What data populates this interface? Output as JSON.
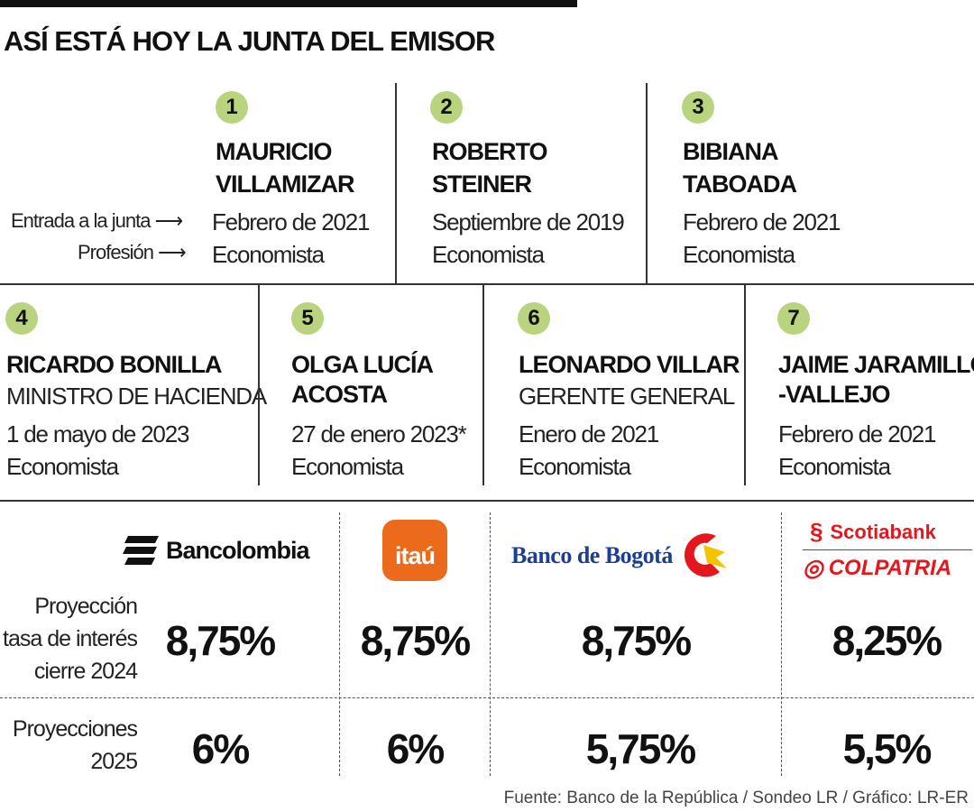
{
  "title": "ASÍ ESTÁ HOY LA JUNTA DEL EMISOR",
  "legend": {
    "entry": "Entrada a la junta",
    "profession": "Profesión"
  },
  "members": [
    {
      "n": "1",
      "name1": "MAURICIO",
      "name2": "VILLAMIZAR",
      "date": "Febrero de 2021",
      "prof": "Economista"
    },
    {
      "n": "2",
      "name1": "ROBERTO",
      "name2": "STEINER",
      "date": "Septiembre de 2019",
      "prof": "Economista"
    },
    {
      "n": "3",
      "name1": "BIBIANA",
      "name2": "TABOADA",
      "date": "Febrero de 2021",
      "prof": "Economista"
    },
    {
      "n": "4",
      "name1": "RICARDO BONILLA",
      "role": "MINISTRO DE HACIENDA",
      "date": "1 de mayo de 2023",
      "prof": "Economista"
    },
    {
      "n": "5",
      "name1": "OLGA LUCÍA",
      "name2": "ACOSTA",
      "date": "27 de enero 2023*",
      "prof": "Economista"
    },
    {
      "n": "6",
      "name1": "LEONARDO VILLAR",
      "role": "GERENTE GENERAL",
      "date": "Enero de 2021",
      "prof": "Economista"
    },
    {
      "n": "7",
      "name1": "JAIME JARAMILLO",
      "name2": "-VALLEJO",
      "date": "Febrero de 2021",
      "prof": "Economista"
    }
  ],
  "banks": [
    {
      "name": "Bancolombia",
      "rate2024": "8,75%",
      "rate2025": "6%"
    },
    {
      "name": "itaú",
      "rate2024": "8,75%",
      "rate2025": "6%",
      "color": "#ec6a1c"
    },
    {
      "name": "Banco de Bogotá",
      "rate2024": "8,75%",
      "rate2025": "5,75%",
      "color": "#1d3f8f"
    },
    {
      "name": "Scotiabank",
      "name2": "COLPATRIA",
      "rate2024": "8,25%",
      "rate2025": "5,5%",
      "color": "#e3171d"
    }
  ],
  "rows": {
    "r1": [
      "Proyección",
      "tasa de interés",
      "cierre 2024"
    ],
    "r2": [
      "Proyecciones",
      "2025"
    ]
  },
  "colors": {
    "badge": "#b9d37e"
  },
  "source": "Fuente: Banco de la República / Sondeo LR / Gráfico: LR-ER"
}
